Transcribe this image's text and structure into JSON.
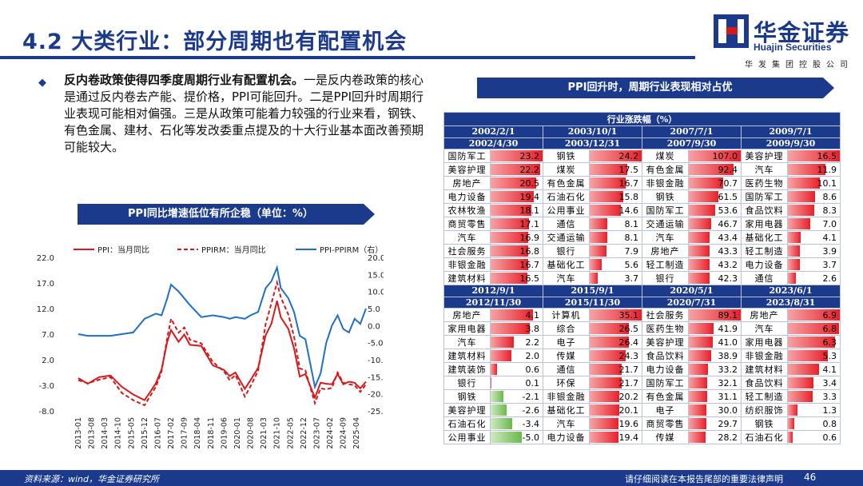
{
  "page": {
    "title": "4.2 大类行业：部分周期也有配置机会",
    "logo_cn": "华金证券",
    "logo_en": "Huajin Securities",
    "logo_sub": "华发集团控股公司",
    "bullet_bold": "反内卷政策使得四季度周期行业有配置机会。",
    "bullet_rest": "一是反内卷政策的核心是通过反内卷去产能、提价格，PPI可能回升。二是PPI回升时周期行业表现可能相对偏强。三是从政策可能着力较强的行业来看，钢铁、有色金属、建材、石化等发改委重点提及的十大行业基本面改善预期可能较大。",
    "banner_left": "PPI同比增速低位有所企稳（单位：%）",
    "banner_right": "PPI回升时，周期行业表现相对占优",
    "footer_source": "资料来源：wind，华金证券研究所",
    "footer_notice": "请仔细阅读在本报告尾部的重要法律声明",
    "page_number": "46"
  },
  "colors": {
    "brand": "#1b3a8c",
    "red": "#d7191c",
    "blue": "#1f6fc5",
    "pos_bar": "#e8202a",
    "neg_bar": "#6ab94a"
  },
  "table": {
    "caption": "行业涨跌幅（%）",
    "upper": {
      "periods": [
        [
          "2002/2/1",
          "2002/4/30"
        ],
        [
          "2003/10/1",
          "2003/12/31"
        ],
        [
          "2007/7/1",
          "2007/9/30"
        ],
        [
          "2009/7/1",
          "2009/9/30"
        ]
      ],
      "rows": [
        [
          [
            "国防军工",
            "23.2"
          ],
          [
            "钢铁",
            "24.2"
          ],
          [
            "煤炭",
            "107.0"
          ],
          [
            "美容护理",
            "16.5"
          ]
        ],
        [
          [
            "美容护理",
            "22.2"
          ],
          [
            "煤炭",
            "17.5"
          ],
          [
            "有色金属",
            "92.4"
          ],
          [
            "汽车",
            "11.9"
          ]
        ],
        [
          [
            "房地产",
            "20.5"
          ],
          [
            "有色金属",
            "16.7"
          ],
          [
            "非银金融",
            "70.7"
          ],
          [
            "医药生物",
            "10.1"
          ]
        ],
        [
          [
            "电力设备",
            "19.4"
          ],
          [
            "石油石化",
            "15.8"
          ],
          [
            "钢铁",
            "61.5"
          ],
          [
            "国防军工",
            "8.6"
          ]
        ],
        [
          [
            "农林牧渔",
            "18.1"
          ],
          [
            "公用事业",
            "14.6"
          ],
          [
            "国防军工",
            "53.6"
          ],
          [
            "食品饮料",
            "8.3"
          ]
        ],
        [
          [
            "商贸零售",
            "17.1"
          ],
          [
            "通信",
            "8.1"
          ],
          [
            "交通运输",
            "46.7"
          ],
          [
            "家用电器",
            "7.0"
          ]
        ],
        [
          [
            "汽车",
            "16.9"
          ],
          [
            "交通运输",
            "8.1"
          ],
          [
            "汽车",
            "43.4"
          ],
          [
            "基础化工",
            "4.1"
          ]
        ],
        [
          [
            "社会服务",
            "16.8"
          ],
          [
            "银行",
            "7.9"
          ],
          [
            "房地产",
            "43.3"
          ],
          [
            "轻工制造",
            "3.9"
          ]
        ],
        [
          [
            "非银金融",
            "16.7"
          ],
          [
            "基础化工",
            "5.6"
          ],
          [
            "轻工制造",
            "43.2"
          ],
          [
            "电力设备",
            "3.7"
          ]
        ],
        [
          [
            "建筑材料",
            "16.5"
          ],
          [
            "汽车",
            "3.7"
          ],
          [
            "银行",
            "42.3"
          ],
          [
            "通信",
            "2.6"
          ]
        ]
      ]
    },
    "lower": {
      "periods": [
        [
          "2012/9/1",
          "2012/11/30"
        ],
        [
          "2015/9/1",
          "2015/11/30"
        ],
        [
          "2020/5/1",
          "2020/7/31"
        ],
        [
          "2023/6/1",
          "2023/8/31"
        ]
      ],
      "rows": [
        [
          [
            "房地产",
            "4.1"
          ],
          [
            "计算机",
            "35.1"
          ],
          [
            "社会服务",
            "89.1"
          ],
          [
            "房地产",
            "6.9"
          ]
        ],
        [
          [
            "家用电器",
            "3.8"
          ],
          [
            "综合",
            "26.5"
          ],
          [
            "医药生物",
            "41.9"
          ],
          [
            "汽车",
            "6.8"
          ]
        ],
        [
          [
            "汽车",
            "2.2"
          ],
          [
            "电子",
            "26.4"
          ],
          [
            "美容护理",
            "41.0"
          ],
          [
            "家用电器",
            "6.3"
          ]
        ],
        [
          [
            "建筑材料",
            "2.0"
          ],
          [
            "传媒",
            "24.3"
          ],
          [
            "食品饮料",
            "38.9"
          ],
          [
            "非银金融",
            "5.3"
          ]
        ],
        [
          [
            "建筑装饰",
            "0.6"
          ],
          [
            "通信",
            "21.7"
          ],
          [
            "电力设备",
            "33.2"
          ],
          [
            "建筑材料",
            "4.1"
          ]
        ],
        [
          [
            "银行",
            "0.1"
          ],
          [
            "环保",
            "21.7"
          ],
          [
            "国防军工",
            "32.1"
          ],
          [
            "食品饮料",
            "3.4"
          ]
        ],
        [
          [
            "钢铁",
            "-2.1"
          ],
          [
            "非银金融",
            "20.2"
          ],
          [
            "有色金属",
            "31.1"
          ],
          [
            "轻工制造",
            "3.3"
          ]
        ],
        [
          [
            "美容护理",
            "-2.6"
          ],
          [
            "基础化工",
            "20.1"
          ],
          [
            "电子",
            "30.0"
          ],
          [
            "纺织服饰",
            "1.3"
          ]
        ],
        [
          [
            "石油石化",
            "-3.4"
          ],
          [
            "汽车",
            "19.6"
          ],
          [
            "商贸零售",
            "29.7"
          ],
          [
            "钢铁",
            "0.8"
          ]
        ],
        [
          [
            "公用事业",
            "-5.0"
          ],
          [
            "电力设备",
            "19.4"
          ],
          [
            "传媒",
            "28.2"
          ],
          [
            "石油石化",
            "0.6"
          ]
        ]
      ]
    }
  },
  "chart_data": {
    "type": "line",
    "title": "",
    "legend": [
      "PPI：当月同比",
      "PPIRM：当月同比",
      "PPI-PPIRM（右）"
    ],
    "legend_position": "top",
    "left_axis": {
      "ylim": [
        -8,
        22
      ],
      "ticks": [
        "22.0",
        "17.0",
        "12.0",
        "7.0",
        "2.0",
        "-3.0",
        "-8.0"
      ]
    },
    "right_axis": {
      "ylim": [
        -25,
        20
      ],
      "ticks": [
        "20.0",
        "15.0",
        "10.0",
        "5.0",
        "0.0",
        "-5.0",
        "-10.0",
        "-15.0",
        "-20.0",
        "-25.0"
      ]
    },
    "x_ticks": [
      "2013-01",
      "2013-08",
      "2014-03",
      "2014-10",
      "2015-05",
      "2015-12",
      "2016-07",
      "2017-02",
      "2017-09",
      "2018-04",
      "2018-11",
      "2019-06",
      "2020-01",
      "2020-08",
      "2021-03",
      "2021-10",
      "2022-05",
      "2022-12",
      "2023-07",
      "2024-02",
      "2024-09",
      "2025-04"
    ],
    "x_range": [
      "2013-01",
      "2025-09"
    ],
    "series": [
      {
        "name": "PPI：当月同比",
        "axis": "left",
        "style": "solid",
        "color": "#d7191c",
        "points": [
          [
            "2013-01",
            -1.6
          ],
          [
            "2013-06",
            -2.7
          ],
          [
            "2013-12",
            -1.4
          ],
          [
            "2014-06",
            -1.1
          ],
          [
            "2014-12",
            -3.3
          ],
          [
            "2015-06",
            -4.8
          ],
          [
            "2015-12",
            -5.9
          ],
          [
            "2016-03",
            -4.3
          ],
          [
            "2016-06",
            -2.6
          ],
          [
            "2016-09",
            0.1
          ],
          [
            "2016-12",
            5.5
          ],
          [
            "2017-02",
            7.8
          ],
          [
            "2017-06",
            5.5
          ],
          [
            "2017-09",
            6.9
          ],
          [
            "2017-12",
            4.9
          ],
          [
            "2018-06",
            4.7
          ],
          [
            "2018-12",
            0.9
          ],
          [
            "2019-06",
            0.0
          ],
          [
            "2019-09",
            -1.2
          ],
          [
            "2019-12",
            -0.5
          ],
          [
            "2020-05",
            -3.7
          ],
          [
            "2020-08",
            -2.0
          ],
          [
            "2020-12",
            0.4
          ],
          [
            "2021-04",
            6.8
          ],
          [
            "2021-07",
            9.0
          ],
          [
            "2021-10",
            13.5
          ],
          [
            "2021-12",
            10.3
          ],
          [
            "2022-04",
            8.0
          ],
          [
            "2022-07",
            4.2
          ],
          [
            "2022-10",
            -1.3
          ],
          [
            "2023-01",
            -0.8
          ],
          [
            "2023-06",
            -5.4
          ],
          [
            "2023-09",
            -2.5
          ],
          [
            "2023-12",
            -2.7
          ],
          [
            "2024-03",
            -2.8
          ],
          [
            "2024-06",
            -0.8
          ],
          [
            "2024-09",
            -2.8
          ],
          [
            "2024-12",
            -2.3
          ],
          [
            "2025-03",
            -2.5
          ],
          [
            "2025-06",
            -3.6
          ],
          [
            "2025-09",
            -2.3
          ]
        ]
      },
      {
        "name": "PPIRM：当月同比",
        "axis": "left",
        "style": "dashed",
        "color": "#d7191c",
        "points": [
          [
            "2013-01",
            -2.0
          ],
          [
            "2013-06",
            -2.6
          ],
          [
            "2013-12",
            -1.9
          ],
          [
            "2014-06",
            -1.4
          ],
          [
            "2014-12",
            -4.5
          ],
          [
            "2015-06",
            -5.9
          ],
          [
            "2015-12",
            -6.9
          ],
          [
            "2016-06",
            -3.3
          ],
          [
            "2016-09",
            -0.3
          ],
          [
            "2016-12",
            6.3
          ],
          [
            "2017-02",
            10.0
          ],
          [
            "2017-06",
            7.3
          ],
          [
            "2017-09",
            8.3
          ],
          [
            "2017-12",
            5.9
          ],
          [
            "2018-06",
            5.2
          ],
          [
            "2018-12",
            1.6
          ],
          [
            "2019-06",
            -0.3
          ],
          [
            "2019-09",
            -2.0
          ],
          [
            "2019-12",
            -1.0
          ],
          [
            "2020-05",
            -5.2
          ],
          [
            "2020-08",
            -3.2
          ],
          [
            "2020-12",
            -0.2
          ],
          [
            "2021-04",
            9.0
          ],
          [
            "2021-07",
            13.0
          ],
          [
            "2021-10",
            17.1
          ],
          [
            "2021-12",
            14.2
          ],
          [
            "2022-04",
            10.8
          ],
          [
            "2022-07",
            6.5
          ],
          [
            "2022-10",
            0.3
          ],
          [
            "2023-01",
            -0.1
          ],
          [
            "2023-06",
            -6.5
          ],
          [
            "2023-09",
            -3.6
          ],
          [
            "2023-12",
            -3.8
          ],
          [
            "2024-03",
            -3.5
          ],
          [
            "2024-06",
            -0.5
          ],
          [
            "2024-09",
            -2.5
          ],
          [
            "2024-12",
            -2.8
          ],
          [
            "2025-03",
            -3.0
          ],
          [
            "2025-06",
            -4.3
          ],
          [
            "2025-09",
            -2.8
          ]
        ]
      },
      {
        "name": "PPI-PPIRM（右）",
        "axis": "right",
        "style": "solid",
        "color": "#1f6fc5",
        "points": [
          [
            "2013-01",
            -2.5
          ],
          [
            "2013-06",
            -3.0
          ],
          [
            "2013-12",
            -3.0
          ],
          [
            "2014-06",
            -3.0
          ],
          [
            "2014-12",
            -2.5
          ],
          [
            "2015-06",
            -2.0
          ],
          [
            "2015-12",
            2.0
          ],
          [
            "2016-06",
            3.5
          ],
          [
            "2016-09",
            3.0
          ],
          [
            "2016-12",
            8.0
          ],
          [
            "2017-02",
            12.0
          ],
          [
            "2017-06",
            10.0
          ],
          [
            "2017-09",
            8.0
          ],
          [
            "2017-12",
            6.0
          ],
          [
            "2018-06",
            2.5
          ],
          [
            "2018-12",
            3.0
          ],
          [
            "2019-06",
            2.5
          ],
          [
            "2019-09",
            2.0
          ],
          [
            "2019-12",
            2.5
          ],
          [
            "2020-05",
            2.0
          ],
          [
            "2020-08",
            3.0
          ],
          [
            "2020-12",
            4.0
          ],
          [
            "2021-04",
            11.0
          ],
          [
            "2021-07",
            13.0
          ],
          [
            "2021-10",
            17.0
          ],
          [
            "2021-12",
            11.0
          ],
          [
            "2022-04",
            8.0
          ],
          [
            "2022-07",
            4.0
          ],
          [
            "2022-10",
            -3.0
          ],
          [
            "2023-01",
            -4.0
          ],
          [
            "2023-06",
            -18.0
          ],
          [
            "2023-09",
            -14.0
          ],
          [
            "2023-12",
            -5.0
          ],
          [
            "2024-03",
            0.0
          ],
          [
            "2024-06",
            3.0
          ],
          [
            "2024-09",
            -1.0
          ],
          [
            "2024-12",
            -2.0
          ],
          [
            "2025-03",
            2.0
          ],
          [
            "2025-06",
            0.5
          ],
          [
            "2025-09",
            5.0
          ]
        ]
      }
    ]
  }
}
